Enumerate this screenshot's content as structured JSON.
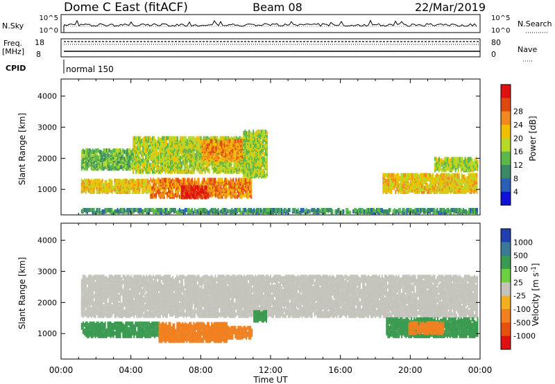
{
  "header": {
    "title": "Dome C East (fitACF)",
    "beam": "Beam 08",
    "date": "22/Mar/2019"
  },
  "top_panels": {
    "nsky_label": "N.Sky",
    "nsearch_label": "N.Search",
    "nsky_ticks": [
      "10^5",
      "10^0"
    ],
    "nsearch_ticks": [
      "10^5",
      "10^0"
    ],
    "freq_label": "Freq.",
    "freq_unit": "[MHz]",
    "freq_ticks": [
      "18",
      "8"
    ],
    "nave_label": "Nave",
    "nave_ticks": [
      "80",
      "0"
    ],
    "cpid_label": "CPID",
    "cpid_value": "normal 150"
  },
  "colors": {
    "power": [
      "#1010d8",
      "#2a5fb8",
      "#3a8a68",
      "#5cb84a",
      "#b8d828",
      "#f0c000",
      "#f08a20",
      "#e04a10",
      "#e01010"
    ],
    "velocity": [
      "#2040b0",
      "#3a7a98",
      "#3a9a50",
      "#6cd040",
      "#c4c4bc",
      "#f0b020",
      "#f08020",
      "#e85010",
      "#e01010"
    ]
  },
  "chart_data": [
    {
      "type": "heatmap",
      "name": "power",
      "xlabel": "",
      "ylabel": "Slant Range [km]",
      "xlim": [
        0,
        24
      ],
      "ylim": [
        180,
        4550
      ],
      "x_ticks": [
        "00:00",
        "04:00",
        "08:00",
        "12:00",
        "16:00",
        "20:00",
        "00:00"
      ],
      "y_ticks": [
        1000,
        2000,
        3000,
        4000
      ],
      "colorbar_label": "Power [dB]",
      "colorbar_ticks": [
        "4",
        "8",
        "12",
        "16",
        "20",
        "24",
        "28"
      ],
      "colorbar_range": [
        0,
        30
      ],
      "echo_regions": [
        {
          "t_start": 1.0,
          "t_end": 5.0,
          "range_low": 850,
          "range_high": 1250,
          "value": 18
        },
        {
          "t_start": 5.0,
          "t_end": 10.9,
          "range_low": 700,
          "range_high": 1250,
          "value": 22
        },
        {
          "t_start": 6.8,
          "t_end": 8.4,
          "range_low": 680,
          "range_high": 1000,
          "value": 27
        },
        {
          "t_start": 1.0,
          "t_end": 4.0,
          "range_low": 1600,
          "range_high": 2200,
          "value": 12
        },
        {
          "t_start": 4.0,
          "t_end": 11.4,
          "range_low": 1500,
          "range_high": 2600,
          "value": 15
        },
        {
          "t_start": 8.0,
          "t_end": 10.5,
          "range_low": 1900,
          "range_high": 2500,
          "value": 21
        },
        {
          "t_start": 10.4,
          "t_end": 11.8,
          "range_low": 1350,
          "range_high": 2800,
          "value": 14
        },
        {
          "t_start": 18.5,
          "t_end": 24.0,
          "range_low": 850,
          "range_high": 1400,
          "value": 18
        },
        {
          "t_start": 21.5,
          "t_end": 24.0,
          "range_low": 1550,
          "range_high": 1950,
          "value": 14
        },
        {
          "t_start": 1.0,
          "t_end": 24.0,
          "range_low": 180,
          "range_high": 300,
          "value": 9
        }
      ]
    },
    {
      "type": "heatmap",
      "name": "velocity",
      "xlabel": "Time UT",
      "ylabel": "Slant Range [km]",
      "xlim": [
        0,
        24
      ],
      "ylim": [
        180,
        4550
      ],
      "x_ticks": [
        "00:00",
        "04:00",
        "08:00",
        "12:00",
        "16:00",
        "20:00",
        "00:00"
      ],
      "y_ticks": [
        1000,
        2000,
        3000,
        4000
      ],
      "colorbar_label": "Velocity [m s^-1]",
      "colorbar_ticks": [
        "1000",
        "500",
        "100",
        "25",
        "-25",
        "-100",
        "-500",
        "-1000"
      ],
      "echo_regions": [
        {
          "t_start": 1.0,
          "t_end": 24.0,
          "range_low": 1500,
          "range_high": 2800,
          "value": 0
        },
        {
          "t_start": 1.0,
          "t_end": 5.5,
          "range_low": 850,
          "range_high": 1300,
          "value": 150
        },
        {
          "t_start": 5.5,
          "t_end": 9.5,
          "range_low": 700,
          "range_high": 1250,
          "value": -300
        },
        {
          "t_start": 8.4,
          "t_end": 10.9,
          "range_low": 800,
          "range_high": 1150,
          "value": -300
        },
        {
          "t_start": 11.0,
          "t_end": 11.8,
          "range_low": 1350,
          "range_high": 1650,
          "value": 150
        },
        {
          "t_start": 18.7,
          "t_end": 24.0,
          "range_low": 850,
          "range_high": 1400,
          "value": 200
        },
        {
          "t_start": 20.0,
          "t_end": 22.0,
          "range_low": 950,
          "range_high": 1300,
          "value": -200
        }
      ]
    }
  ]
}
